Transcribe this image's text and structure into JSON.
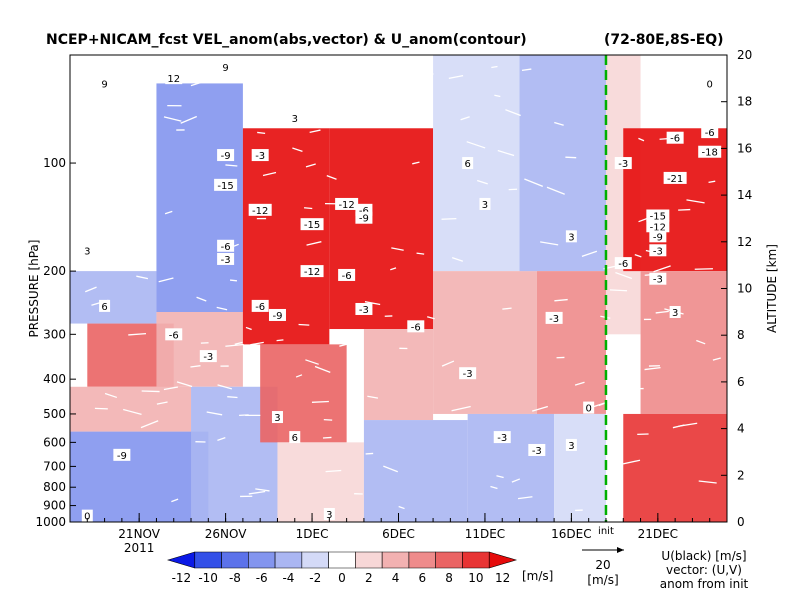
{
  "chart_data": {
    "type": "heatmap",
    "title": "NCEP+NICAM_fcst VEL_anom(abs,vector) & U_anom(contour)",
    "region": "(72-80E,8S-EQ)",
    "ylabel": "PRESSURE [hPa]",
    "ylabel_right": "ALTITUDE [km]",
    "yaxis": {
      "scale": "log",
      "ylim": [
        1000,
        50
      ],
      "ticks": [
        100,
        200,
        300,
        400,
        500,
        600,
        700,
        800,
        900,
        1000
      ]
    },
    "yaxis_right": {
      "ylim": [
        0,
        20
      ],
      "ticks": [
        0,
        2,
        4,
        6,
        8,
        10,
        12,
        14,
        16,
        18,
        20
      ]
    },
    "xaxis": {
      "start": "2011-11-17",
      "end": "2011-12-25",
      "ticks": [
        "21NOV",
        "26NOV",
        "1DEC",
        "6DEC",
        "11DEC",
        "16DEC",
        "21DEC"
      ],
      "year_label": "2011"
    },
    "init_marker": {
      "label": "init",
      "date": "2011-12-18"
    },
    "colorbar": {
      "ticks": [
        "-12",
        "-10",
        "-8",
        "-6",
        "-4",
        "-2",
        "0",
        "2",
        "4",
        "6",
        "8",
        "10",
        "12"
      ],
      "unit": "[m/s]",
      "colors": [
        "#0b19e6",
        "#3350e8",
        "#5c72ea",
        "#8395ee",
        "#aab6f2",
        "#d4daf7",
        "#ffffff",
        "#f7d7d7",
        "#f2b1b1",
        "#ee8b8b",
        "#ea6464",
        "#e83434",
        "#e50b0b"
      ]
    },
    "vector_ref": {
      "value": "20",
      "unit": "[m/s]"
    },
    "legend_note": [
      "U(black) [m/s]",
      "vector: (U,V)",
      "anom from init"
    ],
    "shading_cells": [
      {
        "t0": "17NOV",
        "t1": "22NOV",
        "p0": 50,
        "p1": 200,
        "value": 0
      },
      {
        "t0": "17NOV",
        "t1": "22NOV",
        "p0": 200,
        "p1": 280,
        "value": -4
      },
      {
        "t0": "18NOV",
        "t1": "23NOV",
        "p0": 280,
        "p1": 420,
        "value": 8
      },
      {
        "t0": "17NOV",
        "t1": "24NOV",
        "p0": 420,
        "p1": 560,
        "value": 4
      },
      {
        "t0": "17NOV",
        "t1": "25NOV",
        "p0": 560,
        "p1": 1000,
        "value": -6
      },
      {
        "t0": "22NOV",
        "t1": "27NOV",
        "p0": 60,
        "p1": 260,
        "value": -6
      },
      {
        "t0": "22NOV",
        "t1": "27NOV",
        "p0": 260,
        "p1": 420,
        "value": 4
      },
      {
        "t0": "24NOV",
        "t1": "29NOV",
        "p0": 420,
        "p1": 1000,
        "value": -4
      },
      {
        "t0": "27NOV",
        "t1": "2DEC",
        "p0": 80,
        "p1": 320,
        "value": 12
      },
      {
        "t0": "28NOV",
        "t1": "3DEC",
        "p0": 320,
        "p1": 600,
        "value": 8
      },
      {
        "t0": "29NOV",
        "t1": "4DEC",
        "p0": 600,
        "p1": 1000,
        "value": 2
      },
      {
        "t0": "2DEC",
        "t1": "8DEC",
        "p0": 80,
        "p1": 290,
        "value": 12
      },
      {
        "t0": "4DEC",
        "t1": "8DEC",
        "p0": 290,
        "p1": 520,
        "value": 4
      },
      {
        "t0": "4DEC",
        "t1": "10DEC",
        "p0": 520,
        "p1": 1000,
        "value": -4
      },
      {
        "t0": "8DEC",
        "t1": "13DEC",
        "p0": 50,
        "p1": 200,
        "value": -2
      },
      {
        "t0": "8DEC",
        "t1": "14DEC",
        "p0": 200,
        "p1": 500,
        "value": 4
      },
      {
        "t0": "10DEC",
        "t1": "15DEC",
        "p0": 500,
        "p1": 1000,
        "value": -4
      },
      {
        "t0": "13DEC",
        "t1": "18DEC",
        "p0": 50,
        "p1": 200,
        "value": -4
      },
      {
        "t0": "14DEC",
        "t1": "18DEC",
        "p0": 200,
        "p1": 500,
        "value": 6
      },
      {
        "t0": "15DEC",
        "t1": "18DEC",
        "p0": 500,
        "p1": 1000,
        "value": -2
      },
      {
        "t0": "18DEC",
        "t1": "20DEC",
        "p0": 50,
        "p1": 300,
        "value": 2
      },
      {
        "t0": "19DEC",
        "t1": "25DEC",
        "p0": 80,
        "p1": 200,
        "value": 12
      },
      {
        "t0": "20DEC",
        "t1": "25DEC",
        "p0": 200,
        "p1": 500,
        "value": 6
      },
      {
        "t0": "19DEC",
        "t1": "25DEC",
        "p0": 500,
        "p1": 1000,
        "value": 10
      }
    ],
    "contour_labels": [
      {
        "t": "19NOV",
        "p": 60,
        "text": "9"
      },
      {
        "t": "23NOV",
        "p": 58,
        "text": "12"
      },
      {
        "t": "26NOV",
        "p": 54,
        "text": "9"
      },
      {
        "t": "30NOV",
        "p": 75,
        "text": "3"
      },
      {
        "t": "26NOV",
        "p": 95,
        "text": "-9"
      },
      {
        "t": "28NOV",
        "p": 95,
        "text": "-3"
      },
      {
        "t": "26NOV",
        "p": 115,
        "text": "-15"
      },
      {
        "t": "28NOV",
        "p": 135,
        "text": "-12"
      },
      {
        "t": "1DEC",
        "p": 148,
        "text": "-15"
      },
      {
        "t": "3DEC",
        "p": 130,
        "text": "-12"
      },
      {
        "t": "4DEC",
        "p": 135,
        "text": "-6"
      },
      {
        "t": "4DEC",
        "p": 142,
        "text": "-9"
      },
      {
        "t": "26NOV",
        "p": 170,
        "text": "-6"
      },
      {
        "t": "26NOV",
        "p": 185,
        "text": "-3"
      },
      {
        "t": "1DEC",
        "p": 200,
        "text": "-12"
      },
      {
        "t": "3DEC",
        "p": 205,
        "text": "-6"
      },
      {
        "t": "28NOV",
        "p": 250,
        "text": "-6"
      },
      {
        "t": "29NOV",
        "p": 265,
        "text": "-9"
      },
      {
        "t": "4DEC",
        "p": 255,
        "text": "-3"
      },
      {
        "t": "7DEC",
        "p": 285,
        "text": "-6"
      },
      {
        "t": "23NOV",
        "p": 300,
        "text": "-6"
      },
      {
        "t": "25NOV",
        "p": 345,
        "text": "-3"
      },
      {
        "t": "10DEC",
        "p": 385,
        "text": "-3"
      },
      {
        "t": "29NOV",
        "p": 510,
        "text": "3"
      },
      {
        "t": "30NOV",
        "p": 580,
        "text": "6"
      },
      {
        "t": "20NOV",
        "p": 650,
        "text": "-9"
      },
      {
        "t": "12DEC",
        "p": 580,
        "text": "-3"
      },
      {
        "t": "14DEC",
        "p": 630,
        "text": "-3"
      },
      {
        "t": "2DEC",
        "p": 950,
        "text": "3"
      },
      {
        "t": "18NOV",
        "p": 960,
        "text": "0"
      },
      {
        "t": "18NOV",
        "p": 175,
        "text": "3"
      },
      {
        "t": "19NOV",
        "p": 250,
        "text": "6"
      },
      {
        "t": "10DEC",
        "p": 100,
        "text": "6"
      },
      {
        "t": "11DEC",
        "p": 130,
        "text": "3"
      },
      {
        "t": "16DEC",
        "p": 160,
        "text": "3"
      },
      {
        "t": "15DEC",
        "p": 270,
        "text": "-3"
      },
      {
        "t": "17DEC",
        "p": 480,
        "text": "0"
      },
      {
        "t": "16DEC",
        "p": 610,
        "text": "3"
      },
      {
        "t": "19DEC",
        "p": 100,
        "text": "-3"
      },
      {
        "t": "22DEC",
        "p": 85,
        "text": "-6"
      },
      {
        "t": "24DEC",
        "p": 82,
        "text": "-6"
      },
      {
        "t": "24DEC",
        "p": 93,
        "text": "-18"
      },
      {
        "t": "22DEC",
        "p": 110,
        "text": "-21"
      },
      {
        "t": "21DEC",
        "p": 140,
        "text": "-15"
      },
      {
        "t": "21DEC",
        "p": 150,
        "text": "-12"
      },
      {
        "t": "21DEC",
        "p": 160,
        "text": "-9"
      },
      {
        "t": "21DEC",
        "p": 175,
        "text": "-3"
      },
      {
        "t": "19DEC",
        "p": 190,
        "text": "-6"
      },
      {
        "t": "21DEC",
        "p": 210,
        "text": "-3"
      },
      {
        "t": "22DEC",
        "p": 260,
        "text": "3"
      },
      {
        "t": "24DEC",
        "p": 60,
        "text": "0"
      }
    ]
  }
}
